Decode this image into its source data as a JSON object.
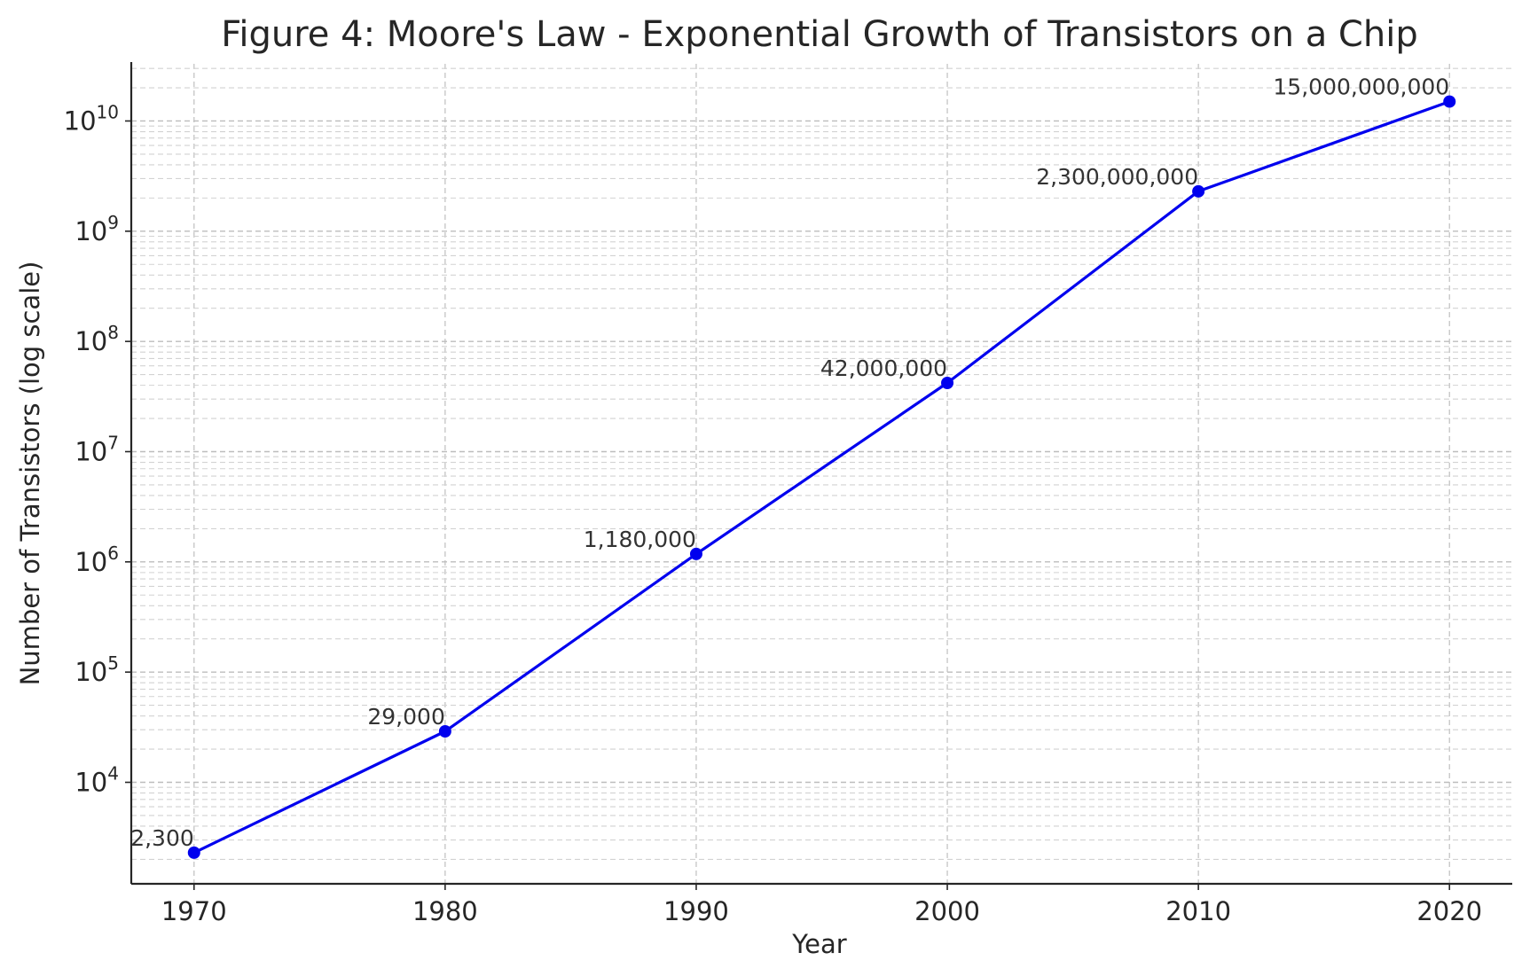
{
  "chart_data": {
    "type": "line",
    "title": "Figure 4: Moore's Law - Exponential Growth of Transistors on a Chip",
    "xlabel": "Year",
    "ylabel": "Number of Transistors (log scale)",
    "yscale": "log",
    "xlim": [
      1967.5,
      2022.5
    ],
    "ylim": [
      1200,
      33000000000
    ],
    "grid": true,
    "x_ticks": [
      1970,
      1980,
      1990,
      2000,
      2010,
      2020
    ],
    "y_ticks": [
      {
        "value": 10000,
        "base": "10",
        "exp": "4"
      },
      {
        "value": 100000,
        "base": "10",
        "exp": "5"
      },
      {
        "value": 1000000,
        "base": "10",
        "exp": "6"
      },
      {
        "value": 10000000,
        "base": "10",
        "exp": "7"
      },
      {
        "value": 100000000,
        "base": "10",
        "exp": "8"
      },
      {
        "value": 1000000000,
        "base": "10",
        "exp": "9"
      },
      {
        "value": 10000000000,
        "base": "10",
        "exp": "10"
      }
    ],
    "series": [
      {
        "color": "#0000ee",
        "marker": "circle",
        "x": [
          1970,
          1980,
          1990,
          2000,
          2010,
          2020
        ],
        "y": [
          2300,
          29000,
          1180000,
          42000000,
          2300000000,
          15000000000
        ],
        "labels": [
          "2,300",
          "29,000",
          "1,180,000",
          "42,000,000",
          "2,300,000,000",
          "15,000,000,000"
        ]
      }
    ]
  }
}
